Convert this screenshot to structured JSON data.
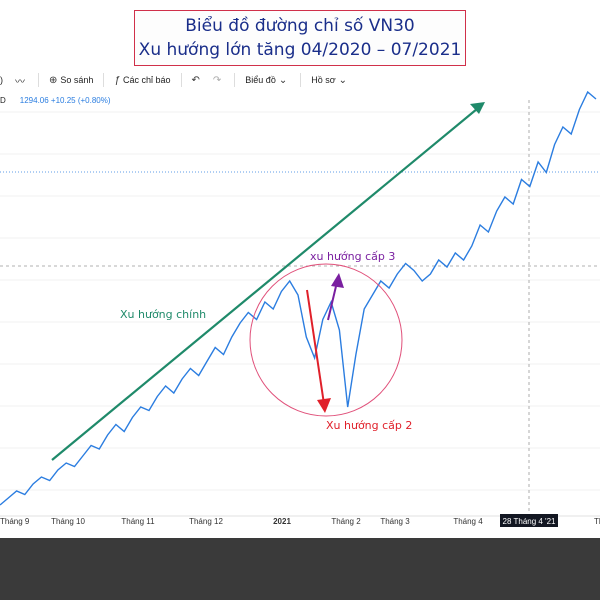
{
  "title": {
    "line1": "Biểu đồ đường chỉ số VN30",
    "line2": "Xu hướng lớn tăng 04/2020 – 07/2021"
  },
  "toolbar": {
    "compare_label": "So sánh",
    "indicators_label": "Các chỉ báo",
    "chart_label": "Biểu đồ",
    "profile_label": "Hồ sơ",
    "first_glyph": "D",
    "leading_glyph": ")"
  },
  "readout": {
    "symbol": "D",
    "text": "1294.06  +10.25 (+0.80%)"
  },
  "annotations": {
    "primary": "Xu hướng chính",
    "secondary": "Xu hướng cấp 2",
    "tertiary": "xu hướng cấp 3"
  },
  "colors": {
    "line": "#2b7de0",
    "primary_trend": "#1f8a6a",
    "secondary_trend": "#e0202a",
    "tertiary_trend": "#7a1fa0",
    "circle": "#e0507a",
    "title_text": "#1a2e8a"
  },
  "chart_data": {
    "type": "line",
    "title": "Biểu đồ đường chỉ số VN30",
    "subtitle": "Xu hướng lớn tăng 04/2020 – 07/2021",
    "x_tick_labels": [
      "Tháng 9",
      "Tháng 10",
      "Tháng 11",
      "Tháng 12",
      "2021",
      "Tháng 2",
      "Tháng 3",
      "Tháng 4",
      "28 Tháng 4 '21",
      "Tháng"
    ],
    "crosshair_label": "28 Tháng 4 '21",
    "last_value": 1294.06,
    "change": "+10.25 (+0.80%)",
    "series": [
      {
        "values": [
          0.02,
          0.04,
          0.06,
          0.05,
          0.08,
          0.1,
          0.09,
          0.12,
          0.14,
          0.13,
          0.16,
          0.19,
          0.18,
          0.22,
          0.25,
          0.23,
          0.27,
          0.3,
          0.29,
          0.33,
          0.36,
          0.34,
          0.38,
          0.41,
          0.39,
          0.43,
          0.47,
          0.45,
          0.5,
          0.54,
          0.57,
          0.55,
          0.6,
          0.58,
          0.63,
          0.66,
          0.62,
          0.5,
          0.44,
          0.55,
          0.6,
          0.52,
          0.3,
          0.45,
          0.58,
          0.62,
          0.66,
          0.64,
          0.68,
          0.71,
          0.69,
          0.66,
          0.68,
          0.72,
          0.7,
          0.74,
          0.72,
          0.76,
          0.82,
          0.8,
          0.86,
          0.9,
          0.88,
          0.95,
          0.93,
          1.0,
          0.97,
          1.05,
          1.1,
          1.08,
          1.15,
          1.2,
          1.18
        ]
      }
    ]
  }
}
